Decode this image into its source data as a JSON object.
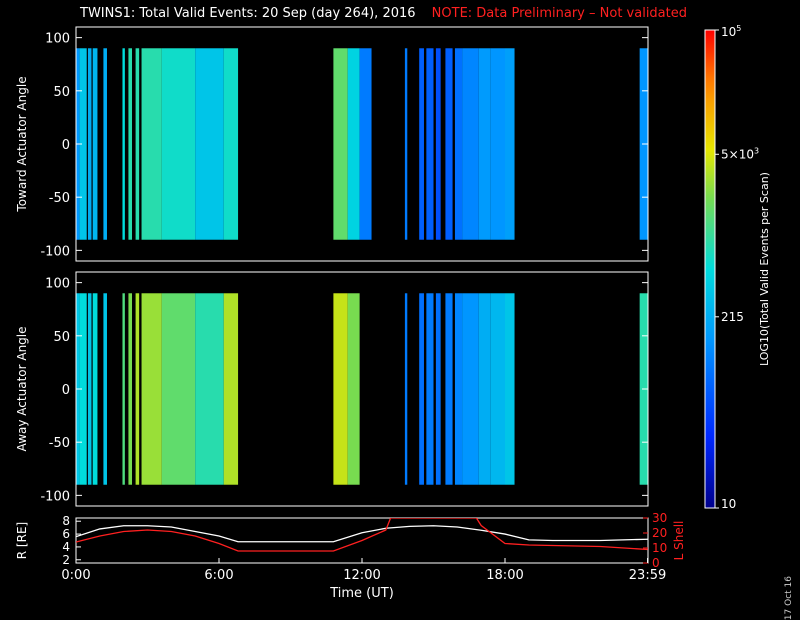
{
  "title": {
    "main": "TWINS1: Total Valid Events: 20 Sep (day 264), 2016",
    "note": "NOTE: Data Preliminary – Not validated"
  },
  "date_stamp": "17 Oct 16",
  "colors": {
    "background": "#000000",
    "axis": "#ffffff",
    "note": "#ff2020",
    "lshell": "#ff2020",
    "radius": "#ffffff"
  },
  "chart_data": [
    {
      "type": "heatmap",
      "id": "toward",
      "ylabel": "Toward Actuator Angle",
      "ylim": [
        -110,
        110
      ],
      "yticks": [
        100,
        50,
        0,
        -50,
        -100
      ],
      "xlim": [
        0,
        24
      ],
      "bands": [
        {
          "t0": 0.0,
          "t1": 0.15,
          "level": 0.35
        },
        {
          "t0": 0.15,
          "t1": 0.45,
          "level": 0.45
        },
        {
          "t0": 0.5,
          "t1": 0.65,
          "level": 0.4
        },
        {
          "t0": 0.7,
          "t1": 0.9,
          "level": 0.42
        },
        {
          "t0": 1.15,
          "t1": 1.3,
          "level": 0.4
        },
        {
          "t0": 1.95,
          "t1": 2.05,
          "level": 0.5
        },
        {
          "t0": 2.2,
          "t1": 2.35,
          "level": 0.55
        },
        {
          "t0": 2.5,
          "t1": 2.65,
          "level": 0.55
        },
        {
          "t0": 2.75,
          "t1": 3.6,
          "level": 0.55
        },
        {
          "t0": 3.6,
          "t1": 5.0,
          "level": 0.52
        },
        {
          "t0": 5.0,
          "t1": 6.2,
          "level": 0.45
        },
        {
          "t0": 6.2,
          "t1": 6.8,
          "level": 0.52
        },
        {
          "t0": 10.8,
          "t1": 11.4,
          "level": 0.62
        },
        {
          "t0": 11.4,
          "t1": 11.9,
          "level": 0.48
        },
        {
          "t0": 11.9,
          "t1": 12.4,
          "level": 0.3
        },
        {
          "t0": 13.8,
          "t1": 13.9,
          "level": 0.3
        },
        {
          "t0": 14.4,
          "t1": 14.6,
          "level": 0.25
        },
        {
          "t0": 14.7,
          "t1": 15.0,
          "level": 0.25
        },
        {
          "t0": 15.1,
          "t1": 15.3,
          "level": 0.22
        },
        {
          "t0": 15.5,
          "t1": 15.8,
          "level": 0.25
        },
        {
          "t0": 15.9,
          "t1": 16.2,
          "level": 0.28
        },
        {
          "t0": 16.2,
          "t1": 16.9,
          "level": 0.32
        },
        {
          "t0": 16.9,
          "t1": 17.4,
          "level": 0.36
        },
        {
          "t0": 17.4,
          "t1": 18.0,
          "level": 0.35
        },
        {
          "t0": 18.0,
          "t1": 18.4,
          "level": 0.37
        },
        {
          "t0": 23.65,
          "t1": 23.99,
          "level": 0.35
        }
      ],
      "cbar_ticks": [
        {
          "label": "10^5",
          "level": 1.0
        },
        {
          "label": "5×10^3",
          "level": 0.74
        },
        {
          "label": "215",
          "level": 0.4
        },
        {
          "label": "10",
          "level": 0.0
        }
      ],
      "cbar_label": "LOG10(Total Valid Events per Scan)"
    },
    {
      "type": "heatmap",
      "id": "away",
      "ylabel": "Away Actuator Angle",
      "ylim": [
        -110,
        110
      ],
      "yticks": [
        100,
        50,
        0,
        -50,
        -100
      ],
      "xlim": [
        0,
        24
      ],
      "bands": [
        {
          "t0": 0.0,
          "t1": 0.15,
          "level": 0.45
        },
        {
          "t0": 0.15,
          "t1": 0.45,
          "level": 0.5
        },
        {
          "t0": 0.5,
          "t1": 0.65,
          "level": 0.45
        },
        {
          "t0": 0.7,
          "t1": 0.9,
          "level": 0.5
        },
        {
          "t0": 1.15,
          "t1": 1.3,
          "level": 0.45
        },
        {
          "t0": 1.95,
          "t1": 2.05,
          "level": 0.6
        },
        {
          "t0": 2.2,
          "t1": 2.35,
          "level": 0.65
        },
        {
          "t0": 2.5,
          "t1": 2.65,
          "level": 0.7
        },
        {
          "t0": 2.75,
          "t1": 3.6,
          "level": 0.68
        },
        {
          "t0": 3.6,
          "t1": 5.0,
          "level": 0.62
        },
        {
          "t0": 5.0,
          "t1": 6.2,
          "level": 0.55
        },
        {
          "t0": 6.2,
          "t1": 6.8,
          "level": 0.7
        },
        {
          "t0": 10.8,
          "t1": 11.4,
          "level": 0.72
        },
        {
          "t0": 11.4,
          "t1": 11.9,
          "level": 0.65
        },
        {
          "t0": 13.8,
          "t1": 13.9,
          "level": 0.3
        },
        {
          "t0": 14.4,
          "t1": 14.6,
          "level": 0.28
        },
        {
          "t0": 14.7,
          "t1": 15.0,
          "level": 0.3
        },
        {
          "t0": 15.1,
          "t1": 15.3,
          "level": 0.28
        },
        {
          "t0": 15.5,
          "t1": 15.8,
          "level": 0.3
        },
        {
          "t0": 15.9,
          "t1": 16.2,
          "level": 0.32
        },
        {
          "t0": 16.2,
          "t1": 16.9,
          "level": 0.35
        },
        {
          "t0": 16.9,
          "t1": 17.4,
          "level": 0.4
        },
        {
          "t0": 17.4,
          "t1": 18.0,
          "level": 0.42
        },
        {
          "t0": 18.0,
          "t1": 18.4,
          "level": 0.45
        },
        {
          "t0": 23.65,
          "t1": 23.99,
          "level": 0.55
        }
      ]
    },
    {
      "type": "line",
      "id": "ephemeris",
      "ylabel_left": "R [RE]",
      "ylabel_right": "L Shell",
      "yticks_left": [
        8,
        6,
        4,
        2
      ],
      "yticks_right": [
        30,
        20,
        10,
        0
      ],
      "ylim_left": [
        1.5,
        8.5
      ],
      "ylim_right": [
        0,
        30
      ],
      "xlim": [
        0,
        24
      ],
      "xticks": [
        {
          "t": 0.0,
          "label": "0:00"
        },
        {
          "t": 6.0,
          "label": "6:00"
        },
        {
          "t": 12.0,
          "label": "12:00"
        },
        {
          "t": 18.0,
          "label": "18:00"
        },
        {
          "t": 23.98,
          "label": "23:59"
        }
      ],
      "xlabel": "Time (UT)",
      "series": [
        {
          "name": "R",
          "axis": "left",
          "color": "#ffffff",
          "x": [
            0,
            1,
            2,
            3,
            4,
            5,
            6,
            6.8,
            9,
            10.8,
            12,
            13,
            14,
            15,
            16,
            17,
            18,
            19,
            20,
            22,
            23.99
          ],
          "y": [
            5.6,
            6.8,
            7.3,
            7.3,
            7.1,
            6.4,
            5.7,
            4.8,
            4.8,
            4.8,
            6.2,
            6.9,
            7.2,
            7.3,
            7.1,
            6.6,
            6.0,
            5.1,
            5.0,
            5.0,
            5.2
          ]
        },
        {
          "name": "L Shell",
          "axis": "right",
          "color": "#ff2020",
          "x": [
            0,
            1,
            2,
            3,
            4,
            5,
            6,
            6.8,
            9,
            10.8,
            12,
            13,
            13.2,
            16.8,
            17,
            18,
            19,
            22,
            23.99
          ],
          "y": [
            14,
            18,
            21,
            22,
            21,
            18,
            13,
            8,
            8,
            8,
            15,
            22,
            30,
            30,
            25,
            13,
            12,
            11,
            9
          ]
        }
      ]
    }
  ]
}
